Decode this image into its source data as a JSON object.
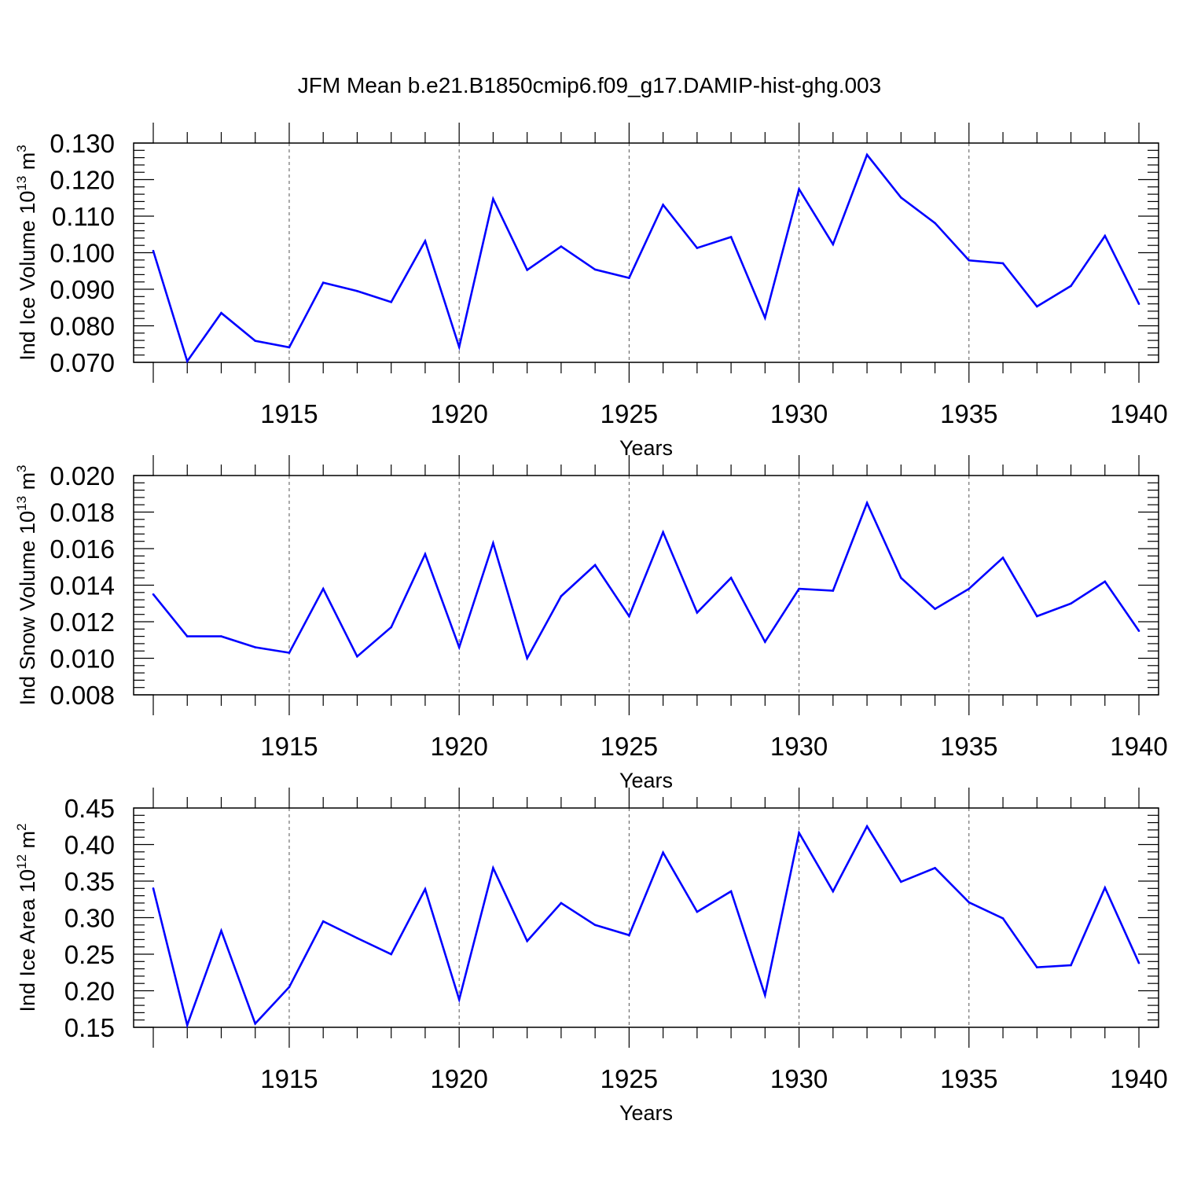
{
  "chart_data": {
    "type": "line",
    "title": "JFM Mean b.e21.B1850cmip6.f09_g17.DAMIP-hist-ghg.003",
    "line_color": "#0000ff",
    "x": [
      1911,
      1912,
      1913,
      1914,
      1915,
      1916,
      1917,
      1918,
      1919,
      1920,
      1921,
      1922,
      1923,
      1924,
      1925,
      1926,
      1927,
      1928,
      1929,
      1930,
      1931,
      1932,
      1933,
      1934,
      1935,
      1936,
      1937,
      1938,
      1939,
      1940
    ],
    "xlim": [
      1911,
      1940
    ],
    "xticks": [
      1915,
      1920,
      1925,
      1930,
      1935,
      1940
    ],
    "xlabel": "Years",
    "panels": [
      {
        "name": "ice-volume",
        "ylabel_main": "Ind Ice Volume 10",
        "ylabel_exp": "13",
        "ylabel_unit": " m",
        "ylabel_unit_exp": "3",
        "ylim": [
          0.07,
          0.13
        ],
        "yticks": [
          "0.070",
          "0.080",
          "0.090",
          "0.100",
          "0.110",
          "0.120",
          "0.130"
        ],
        "values": [
          0.1005,
          0.0703,
          0.0835,
          0.0759,
          0.0741,
          0.0918,
          0.0895,
          0.0865,
          0.1032,
          0.0742,
          0.1147,
          0.0953,
          0.1017,
          0.0954,
          0.0931,
          0.1131,
          0.1013,
          0.1043,
          0.0822,
          0.1174,
          0.1023,
          0.1268,
          0.1151,
          0.1081,
          0.0979,
          0.0971,
          0.0853,
          0.0909,
          0.1046,
          0.086
        ]
      },
      {
        "name": "snow-volume",
        "ylabel_main": "Ind Snow Volume 10",
        "ylabel_exp": "13",
        "ylabel_unit": " m",
        "ylabel_unit_exp": "3",
        "ylim": [
          0.008,
          0.02
        ],
        "yticks": [
          "0.008",
          "0.010",
          "0.012",
          "0.014",
          "0.016",
          "0.018",
          "0.020"
        ],
        "values": [
          0.0135,
          0.0112,
          0.0112,
          0.0106,
          0.0103,
          0.0138,
          0.0101,
          0.0117,
          0.0157,
          0.0106,
          0.0163,
          0.01,
          0.0134,
          0.0151,
          0.0123,
          0.0169,
          0.0125,
          0.0144,
          0.0109,
          0.0138,
          0.0137,
          0.0185,
          0.0144,
          0.0127,
          0.0138,
          0.0155,
          0.0123,
          0.013,
          0.0142,
          0.0115
        ]
      },
      {
        "name": "ice-area",
        "ylabel_main": "Ind Ice Area 10",
        "ylabel_exp": "12",
        "ylabel_unit": " m",
        "ylabel_unit_exp": "2",
        "ylim": [
          0.15,
          0.45
        ],
        "yticks": [
          "0.15",
          "0.20",
          "0.25",
          "0.30",
          "0.35",
          "0.40",
          "0.45"
        ],
        "values": [
          0.34,
          0.153,
          0.282,
          0.155,
          0.205,
          0.295,
          0.272,
          0.25,
          0.339,
          0.188,
          0.368,
          0.268,
          0.32,
          0.29,
          0.276,
          0.389,
          0.308,
          0.336,
          0.194,
          0.416,
          0.336,
          0.425,
          0.349,
          0.368,
          0.321,
          0.299,
          0.232,
          0.235,
          0.341,
          0.238
        ]
      }
    ]
  }
}
